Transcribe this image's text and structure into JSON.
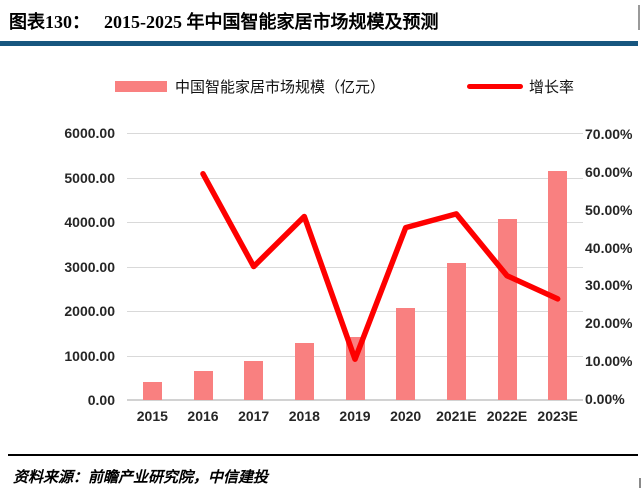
{
  "header": {
    "figure_label": "图表130：",
    "title": "2015-2025 年中国智能家居市场规模及预测"
  },
  "legend": {
    "bars_label": "中国智能家居市场规模（亿元）",
    "line_label": "增长率"
  },
  "footer": {
    "source": "资料来源：前瞻产业研究院，中信建投"
  },
  "colors": {
    "bar_fill": "#f98080",
    "line_stroke": "#fe0000",
    "gridline": "#d9d9d9",
    "title_rule": "#17567f",
    "axis_text": "#262626"
  },
  "chart_data": {
    "type": "bar",
    "subtype": "bar+line combo, dual axis",
    "title": "2015-2025 年中国智能家居市场规模及预测",
    "categories": [
      "2015",
      "2016",
      "2017",
      "2018",
      "2019",
      "2020",
      "2021E",
      "2022E",
      "2023E"
    ],
    "series": [
      {
        "name": "中国智能家居市场规模（亿元）",
        "type": "bar",
        "axis": "left",
        "values": [
          403,
          642,
          867,
          1284,
          1422,
          2065,
          3072,
          4074,
          5155
        ]
      },
      {
        "name": "增长率",
        "type": "line",
        "axis": "right",
        "values": [
          null,
          59.3,
          35.0,
          48.1,
          10.7,
          45.2,
          48.8,
          32.6,
          26.5
        ]
      }
    ],
    "left_axis": {
      "min": 0,
      "max": 6000,
      "step": 1000,
      "ticks": [
        "6000.00",
        "5000.00",
        "4000.00",
        "3000.00",
        "2000.00",
        "1000.00",
        "0.00"
      ]
    },
    "right_axis": {
      "min": 0,
      "max": 70,
      "step": 10,
      "ticks": [
        "70.00%",
        "60.00%",
        "50.00%",
        "40.00%",
        "30.00%",
        "20.00%",
        "10.00%",
        "0.00%"
      ]
    },
    "grid": true,
    "legend_position": "top"
  }
}
